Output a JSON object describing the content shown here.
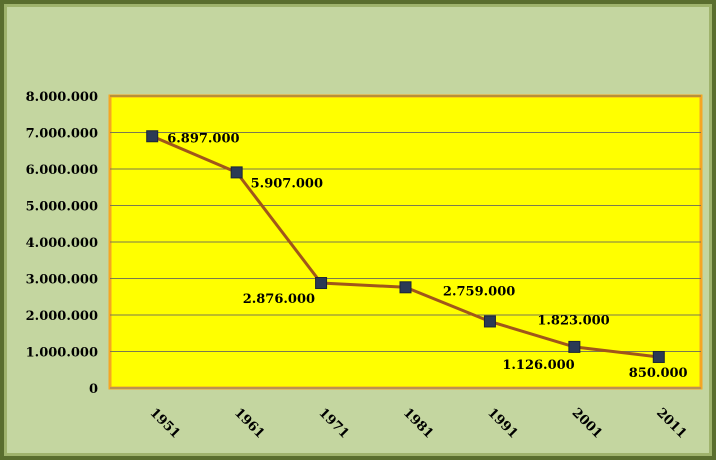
{
  "chart_data": {
    "type": "line",
    "title": "",
    "xlabel": "",
    "ylabel": "",
    "categories": [
      "1951",
      "1961",
      "1971",
      "1981",
      "1991",
      "2001",
      "2011"
    ],
    "series": [
      {
        "values": [
          6897000,
          5907000,
          2876000,
          2759000,
          1823000,
          1126000,
          850000
        ],
        "labels": [
          "6.897.000",
          "5.907.000",
          "2.876.000",
          "2.759.000",
          "1.823.000",
          "1.126.000",
          "850.000"
        ]
      }
    ],
    "ylim": [
      0,
      8000000
    ],
    "yticks": [
      {
        "value": 0,
        "label": "0"
      },
      {
        "value": 1000000,
        "label": "1.000.000"
      },
      {
        "value": 2000000,
        "label": "2.000.000"
      },
      {
        "value": 3000000,
        "label": "3.000.000"
      },
      {
        "value": 4000000,
        "label": "4.000.000"
      },
      {
        "value": 5000000,
        "label": "5.000.000"
      },
      {
        "value": 6000000,
        "label": "6.000.000"
      },
      {
        "value": 7000000,
        "label": "7.000.000"
      },
      {
        "value": 8000000,
        "label": "8.000.000"
      }
    ],
    "grid": true,
    "legend": "none",
    "colors": {
      "frame_border": "#5a6e2e",
      "frame_background": "#c4d6a0",
      "plot_background": "#ffff00",
      "plot_border": "#f5a623",
      "gridline": "#7a7a50",
      "line": "#a0561a",
      "marker": "#2b3a55"
    }
  }
}
